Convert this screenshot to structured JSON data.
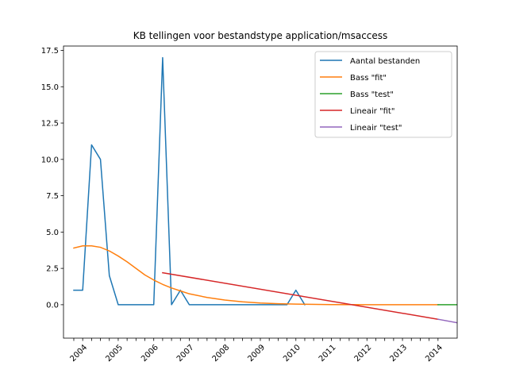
{
  "chart_data": {
    "type": "line",
    "title": "KB tellingen voor bestandstype application/msaccess",
    "xlabel": "",
    "ylabel": "",
    "x_tick_labels": [
      "2004",
      "2005",
      "2006",
      "2007",
      "2008",
      "2009",
      "2010",
      "2011",
      "2012",
      "2013",
      "2014"
    ],
    "y_ticks": [
      0.0,
      2.5,
      5.0,
      7.5,
      10.0,
      12.5,
      15.0,
      17.5
    ],
    "y_tick_labels": [
      "0.0",
      "2.5",
      "5.0",
      "7.5",
      "10.0",
      "12.5",
      "15.0",
      "17.5"
    ],
    "xlim": [
      2003.46,
      2014.54
    ],
    "ylim": [
      -2.3,
      17.8
    ],
    "grid": false,
    "legend_position": "top-right",
    "series": [
      {
        "name": "Aantal bestanden",
        "color": "#1f77b4",
        "x": [
          2003.75,
          2004.0,
          2004.25,
          2004.5,
          2004.75,
          2005.0,
          2005.25,
          2005.5,
          2005.75,
          2006.0,
          2006.25,
          2006.5,
          2006.75,
          2007.0,
          2007.25,
          2007.5,
          2007.75,
          2008.0,
          2008.25,
          2008.5,
          2008.75,
          2009.0,
          2009.25,
          2009.5,
          2009.75,
          2010.0,
          2010.25
        ],
        "values": [
          1,
          1,
          11,
          10,
          2,
          0,
          0,
          0,
          0,
          0,
          17,
          0,
          1,
          0,
          0,
          0,
          0,
          0,
          0,
          0,
          0,
          0,
          0,
          0,
          0,
          1,
          0
        ]
      },
      {
        "name": "Bass \"fit\"",
        "color": "#ff7f0e",
        "x": [
          2003.75,
          2004.0,
          2004.25,
          2004.5,
          2004.75,
          2005.0,
          2005.25,
          2005.5,
          2005.75,
          2006.0,
          2006.25,
          2006.5,
          2006.75,
          2007.0,
          2007.5,
          2008.0,
          2008.5,
          2009.0,
          2009.5,
          2010.0,
          2011.0,
          2012.0,
          2013.0,
          2014.0
        ],
        "values": [
          3.9,
          4.05,
          4.05,
          3.95,
          3.7,
          3.35,
          2.95,
          2.5,
          2.05,
          1.7,
          1.4,
          1.15,
          0.95,
          0.75,
          0.5,
          0.32,
          0.2,
          0.12,
          0.07,
          0.04,
          0.01,
          0.0,
          0.0,
          0.0
        ]
      },
      {
        "name": "Bass \"test\"",
        "color": "#2ca02c",
        "x": [
          2014.0,
          2015.0
        ],
        "values": [
          0.0,
          0.0
        ]
      },
      {
        "name": "Lineair \"fit\"",
        "color": "#d62728",
        "x": [
          2006.25,
          2014.0
        ],
        "values": [
          2.2,
          -1.0
        ]
      },
      {
        "name": "Lineair \"test\"",
        "color": "#9467bd",
        "x": [
          2014.0,
          2015.0
        ],
        "values": [
          -1.0,
          -1.45
        ]
      }
    ]
  }
}
